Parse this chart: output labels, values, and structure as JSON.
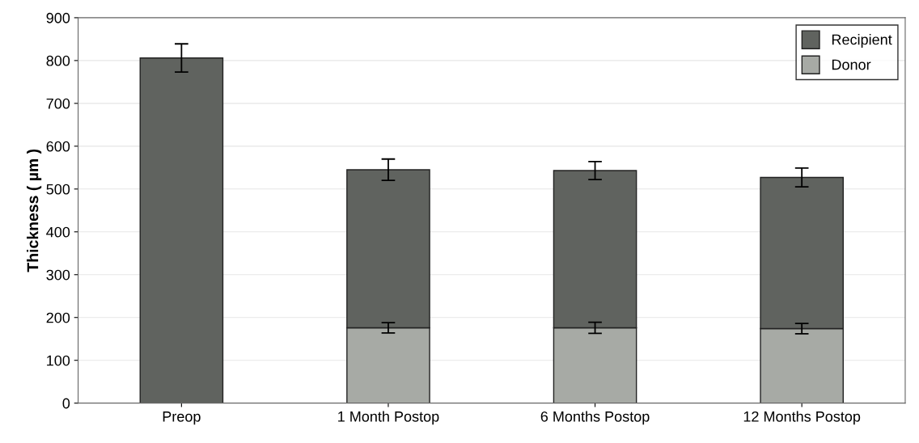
{
  "chart_data": {
    "type": "bar",
    "stacked": true,
    "ylabel": "Thickness ( µm )",
    "categories": [
      "Preop",
      "1 Month Postop",
      "6 Months Postop",
      "12 Months Postop"
    ],
    "series": [
      {
        "name": "Donor",
        "color": "#a7aaa5",
        "values": [
          null,
          176,
          176,
          174
        ],
        "errors": [
          null,
          12,
          13,
          12
        ]
      },
      {
        "name": "Recipient",
        "color": "#60635f",
        "values": [
          806,
          369,
          367,
          353
        ],
        "errors": [
          33,
          25,
          21,
          22
        ]
      }
    ],
    "ylim": [
      0,
      900
    ],
    "yticks": [
      0,
      100,
      200,
      300,
      400,
      500,
      600,
      700,
      800,
      900
    ],
    "grid": "y",
    "legend": "top right"
  }
}
